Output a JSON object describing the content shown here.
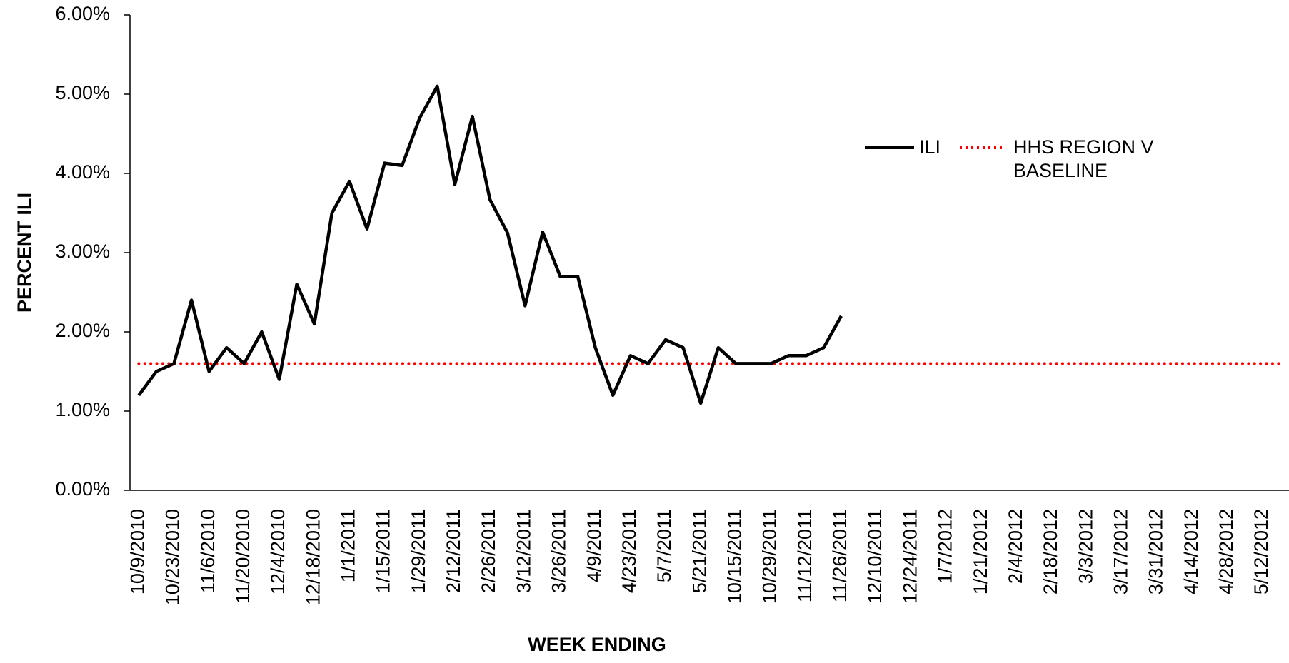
{
  "chart_data": {
    "type": "line",
    "y_label": "PERCENT ILI",
    "x_label": "WEEK ENDING",
    "categories": [
      "10/9/2010",
      null,
      "10/23/2010",
      null,
      "11/6/2010",
      null,
      "11/20/2010",
      null,
      "12/4/2010",
      null,
      "12/18/2010",
      null,
      "1/1/2011",
      null,
      "1/15/2011",
      null,
      "1/29/2011",
      null,
      "2/12/2011",
      null,
      "2/26/2011",
      null,
      "3/12/2011",
      null,
      "3/26/2011",
      null,
      "4/9/2011",
      null,
      "4/23/2011",
      null,
      "5/7/2011",
      null,
      "5/21/2011",
      null,
      "10/15/2011",
      null,
      "10/29/2011",
      null,
      "11/12/2011",
      null,
      "11/26/2011",
      null,
      "12/10/2011",
      null,
      "12/24/2011",
      null,
      "1/7/2012",
      null,
      "1/21/2012",
      null,
      "2/4/2012",
      null,
      "2/18/2012",
      null,
      "3/3/2012",
      null,
      "3/17/2012",
      null,
      "3/31/2012",
      null,
      "4/14/2012",
      null,
      "4/28/2012",
      null,
      "5/12/2012",
      null
    ],
    "series": [
      {
        "name": "ILI",
        "color": "#000000",
        "style": "solid",
        "values": [
          1.2,
          1.5,
          1.6,
          2.4,
          1.5,
          1.8,
          1.6,
          2.0,
          1.4,
          2.6,
          2.1,
          3.5,
          3.9,
          3.3,
          4.13,
          4.1,
          4.7,
          5.1,
          3.86,
          4.72,
          3.67,
          3.25,
          2.33,
          3.26,
          2.7,
          2.7,
          1.8,
          1.2,
          1.7,
          1.6,
          1.9,
          1.8,
          1.1,
          1.8,
          1.6,
          1.6,
          1.6,
          1.7,
          1.7,
          1.8,
          2.2,
          null,
          null,
          null,
          null,
          null,
          null,
          null,
          null,
          null,
          null,
          null,
          null,
          null,
          null,
          null,
          null,
          null,
          null,
          null,
          null,
          null,
          null,
          null,
          null,
          null
        ]
      },
      {
        "name": "HHS REGION V BASELINE",
        "color": "#ff0000",
        "style": "dotted",
        "values": [
          1.6,
          1.6,
          1.6,
          1.6,
          1.6,
          1.6,
          1.6,
          1.6,
          1.6,
          1.6,
          1.6,
          1.6,
          1.6,
          1.6,
          1.6,
          1.6,
          1.6,
          1.6,
          1.6,
          1.6,
          1.6,
          1.6,
          1.6,
          1.6,
          1.6,
          1.6,
          1.6,
          1.6,
          1.6,
          1.6,
          1.6,
          1.6,
          1.6,
          1.6,
          1.6,
          1.6,
          1.6,
          1.6,
          1.6,
          1.6,
          1.6,
          1.6,
          1.6,
          1.6,
          1.6,
          1.6,
          1.6,
          1.6,
          1.6,
          1.6,
          1.6,
          1.6,
          1.6,
          1.6,
          1.6,
          1.6,
          1.6,
          1.6,
          1.6,
          1.6,
          1.6,
          1.6,
          1.6,
          1.6,
          1.6,
          1.6
        ]
      }
    ],
    "ylim": [
      0,
      6
    ],
    "yticks": [
      {
        "value": 0,
        "label": "0.00%"
      },
      {
        "value": 1,
        "label": "1.00%"
      },
      {
        "value": 2,
        "label": "2.00%"
      },
      {
        "value": 3,
        "label": "3.00%"
      },
      {
        "value": 4,
        "label": "4.00%"
      },
      {
        "value": 5,
        "label": "5.00%"
      },
      {
        "value": 6,
        "label": "6.00%"
      }
    ],
    "grid": false
  }
}
